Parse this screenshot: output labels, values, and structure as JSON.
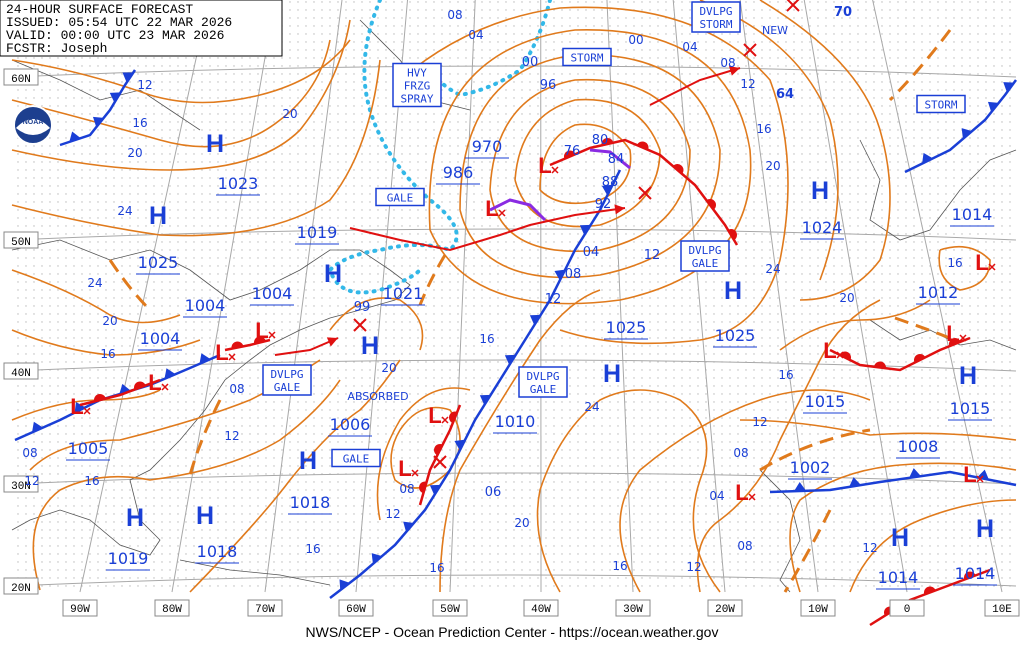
{
  "header": {
    "title": "24-HOUR SURFACE FORECAST",
    "issued": "ISSUED: 05:54 UTC 22 MAR 2026",
    "valid": "VALID:  00:00 UTC 23 MAR 2026",
    "forecaster": "FCSTR:  Joseph"
  },
  "footer": "NWS/NCEP - Ocean Prediction Center - https://ocean.weather.gov",
  "logo": "NOAA",
  "lat_labels": [
    "60N",
    "50N",
    "40N",
    "30N",
    "20N"
  ],
  "lon_labels": [
    "90W",
    "80W",
    "70W",
    "60W",
    "50W",
    "40W",
    "30W",
    "20W",
    "10W",
    "0",
    "10E"
  ],
  "highs": [
    "H",
    "H",
    "H",
    "H",
    "H",
    "H",
    "H",
    "H",
    "H",
    "H",
    "H",
    "H",
    "H"
  ],
  "lows": [
    "L",
    "L",
    "L",
    "L",
    "L",
    "L",
    "L",
    "L",
    "L",
    "L",
    "L",
    "L",
    "L"
  ],
  "pressures": [
    "1023",
    "1025",
    "1004",
    "1004",
    "1004",
    "1019",
    "99",
    "1021",
    "986",
    "970",
    "1006",
    "1005",
    "1018",
    "1019",
    "1018",
    "1010",
    "06",
    "1025",
    "1025",
    "12",
    "1024",
    "1014",
    "1012",
    "1015",
    "1015",
    "1008",
    "1002",
    "1014",
    "1014",
    "76",
    "80",
    "84",
    "88",
    "92",
    "96",
    "00",
    "04",
    "08",
    "12",
    "70",
    "64"
  ],
  "isobar_labels": [
    "12",
    "16",
    "20",
    "24",
    "20",
    "24",
    "20",
    "16",
    "08",
    "12",
    "16",
    "12",
    "08",
    "16",
    "20",
    "24",
    "16",
    "16",
    "20",
    "16",
    "12",
    "08",
    "04",
    "08",
    "12",
    "16",
    "20",
    "24",
    "20",
    "16",
    "12",
    "08",
    "04",
    "00",
    "08",
    "04",
    "12",
    "16",
    "08",
    "12"
  ],
  "warnings": [
    {
      "lines": [
        "STORM"
      ]
    },
    {
      "lines": [
        "DVLPG",
        "STORM"
      ]
    },
    {
      "lines": [
        "HVY",
        "FRZG",
        "SPRAY"
      ]
    },
    {
      "lines": [
        "GALE"
      ]
    },
    {
      "lines": [
        "DVLPG",
        "GALE"
      ]
    },
    {
      "lines": [
        "DVLPG",
        "GALE"
      ]
    },
    {
      "lines": [
        "DVLPG",
        "GALE"
      ]
    },
    {
      "lines": [
        "GALE"
      ]
    },
    {
      "lines": [
        "STORM"
      ]
    }
  ],
  "notes": [
    "NEW",
    "ABSORBED"
  ]
}
